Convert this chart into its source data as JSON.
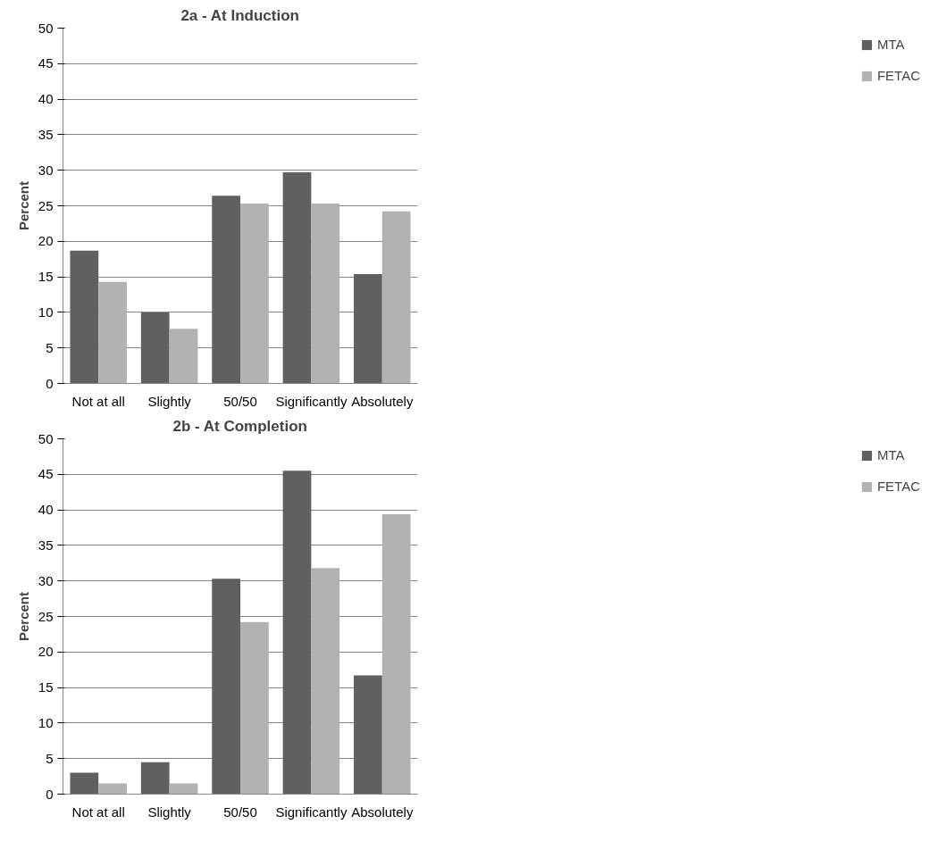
{
  "chart_data": [
    {
      "type": "bar",
      "title": "2a - At Induction",
      "ylabel": "Percent",
      "categories": [
        "Not at all",
        "Slightly",
        "50/50",
        "Significantly",
        "Absolutely"
      ],
      "ylim": [
        0,
        50
      ],
      "yticks": [
        0,
        5,
        10,
        15,
        20,
        25,
        30,
        35,
        40,
        45,
        50
      ],
      "grid": "y",
      "legend": "right",
      "series": [
        {
          "name": "MTA",
          "color": "#606060",
          "values": [
            18.7,
            10.0,
            26.4,
            29.7,
            15.4
          ]
        },
        {
          "name": "FETAC",
          "color": "#b2b2b2",
          "values": [
            14.3,
            7.7,
            25.3,
            25.3,
            24.2
          ]
        }
      ]
    },
    {
      "type": "bar",
      "title": "2b - At Completion",
      "ylabel": "Percent",
      "categories": [
        "Not at all",
        "Slightly",
        "50/50",
        "Significantly",
        "Absolutely"
      ],
      "ylim": [
        0,
        50
      ],
      "yticks": [
        0,
        5,
        10,
        15,
        20,
        25,
        30,
        35,
        40,
        45,
        50
      ],
      "grid": "y",
      "legend": "right",
      "series": [
        {
          "name": "MTA",
          "color": "#606060",
          "values": [
            3.0,
            4.5,
            30.3,
            45.5,
            16.7
          ]
        },
        {
          "name": "FETAC",
          "color": "#b2b2b2",
          "values": [
            1.5,
            1.5,
            24.2,
            31.8,
            39.4
          ]
        }
      ]
    }
  ]
}
